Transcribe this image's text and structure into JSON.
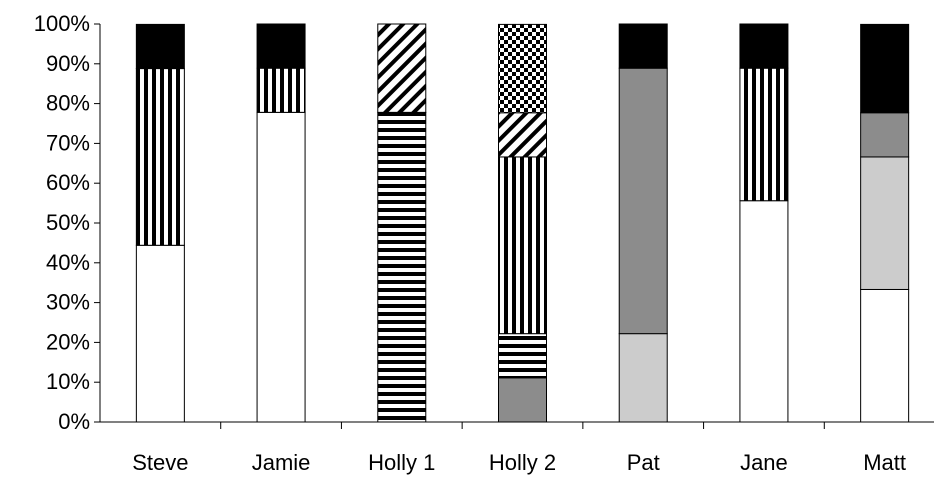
{
  "chart_data": {
    "type": "bar",
    "stacked": true,
    "categories": [
      "Steve",
      "Jamie",
      "Holly 1",
      "Holly 2",
      "Pat",
      "Jane",
      "Matt"
    ],
    "y_tick_labels": [
      "0%",
      "10%",
      "20%",
      "30%",
      "40%",
      "50%",
      "60%",
      "70%",
      "80%",
      "90%",
      "100%"
    ],
    "ylim": [
      0,
      100
    ],
    "grid": false,
    "legend": "none",
    "series": [
      {
        "fill": "white",
        "values": [
          44.4,
          77.8,
          0,
          0,
          0,
          55.6,
          33.3
        ]
      },
      {
        "fill": "light-gray",
        "values": [
          0,
          0,
          0,
          0,
          22.2,
          0,
          33.3
        ]
      },
      {
        "fill": "dark-gray",
        "values": [
          0,
          0,
          0,
          11.1,
          66.7,
          0,
          11.1
        ]
      },
      {
        "fill": "horizontal-stripes",
        "values": [
          0,
          0,
          77.8,
          11.1,
          0,
          0,
          0
        ]
      },
      {
        "fill": "vertical-stripes",
        "values": [
          44.4,
          11.1,
          0,
          44.4,
          0,
          33.3,
          0
        ]
      },
      {
        "fill": "diagonal-stripes",
        "values": [
          0,
          0,
          22.2,
          11.1,
          0,
          0,
          0
        ]
      },
      {
        "fill": "checkerboard",
        "values": [
          0,
          0,
          0,
          22.2,
          0,
          0,
          0
        ]
      },
      {
        "fill": "black",
        "values": [
          11.1,
          11.1,
          0,
          0,
          11.1,
          11.1,
          22.2
        ]
      }
    ],
    "colors": {
      "white": "#ffffff",
      "light_gray": "#cccccc",
      "dark_gray": "#8c8c8c",
      "black": "#000000"
    }
  }
}
